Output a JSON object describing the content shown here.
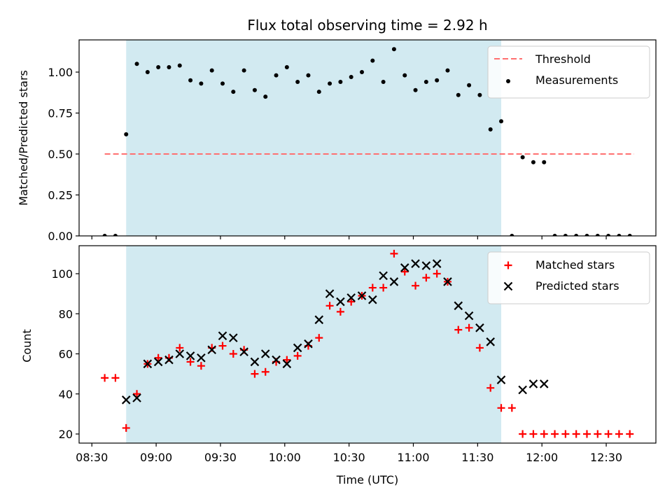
{
  "title": "Flux total observing time = 2.92 h",
  "colors": {
    "shade": "#add8e6",
    "threshold": "#ff7070",
    "measurement": "#000000",
    "matched": "#ff0000",
    "predicted": "#000000"
  },
  "chart_data": [
    {
      "type": "scatter",
      "panel": "top",
      "ylabel": "Matched/Predicted stars",
      "xlabel": "",
      "ylim": [
        0,
        1.2
      ],
      "yticks": [
        0,
        0.25,
        0.5,
        0.75,
        1.0
      ],
      "ytick_labels": [
        "0.00",
        "0.25",
        "0.50",
        "0.75",
        "1.00"
      ],
      "grid": false,
      "legend_position": "top-right",
      "shaded_interval_minutes": [
        46,
        221
      ],
      "series": [
        {
          "name": "Threshold",
          "style": "dashed-line",
          "x": [
            36,
            283
          ],
          "y": [
            0.5,
            0.5
          ]
        },
        {
          "name": "Measurements",
          "style": "dot",
          "x": [
            36,
            41,
            46,
            51,
            56,
            61,
            66,
            71,
            76,
            81,
            86,
            91,
            96,
            101,
            106,
            111,
            116,
            121,
            126,
            131,
            136,
            141,
            146,
            151,
            156,
            161,
            166,
            171,
            176,
            181,
            186,
            191,
            196,
            201,
            206,
            211,
            216,
            221,
            226,
            231,
            236,
            241,
            246,
            251,
            256,
            261,
            266,
            271,
            276,
            281
          ],
          "y": [
            0,
            0,
            0.62,
            1.05,
            1.0,
            1.03,
            1.03,
            1.04,
            0.95,
            0.93,
            1.01,
            0.93,
            0.88,
            1.01,
            0.89,
            0.85,
            0.98,
            1.03,
            0.94,
            0.98,
            0.88,
            0.93,
            0.94,
            0.97,
            1.0,
            1.07,
            0.94,
            1.14,
            0.98,
            0.89,
            0.94,
            0.95,
            1.01,
            0.86,
            0.92,
            0.86,
            0.65,
            0.7,
            0,
            0.48,
            0.45,
            0.45,
            0,
            0,
            0,
            0,
            0,
            0,
            0,
            0
          ]
        }
      ]
    },
    {
      "type": "scatter",
      "panel": "bottom",
      "ylabel": "Count",
      "xlabel": "Time (UTC)",
      "xticks_minutes": [
        30,
        60,
        90,
        120,
        150,
        180,
        210,
        240,
        270
      ],
      "xtick_labels": [
        "08:30",
        "09:00",
        "09:30",
        "10:00",
        "10:30",
        "11:00",
        "11:30",
        "12:00",
        "12:30"
      ],
      "yticks": [
        20,
        40,
        60,
        80,
        100
      ],
      "ytick_labels": [
        "20",
        "40",
        "60",
        "80",
        "100"
      ],
      "ylim": [
        15.5,
        113.5
      ],
      "grid": false,
      "legend_position": "top-right",
      "series": [
        {
          "name": "Matched stars",
          "style": "plus",
          "x": [
            36,
            41,
            46,
            51,
            56,
            61,
            66,
            71,
            76,
            81,
            86,
            91,
            96,
            101,
            106,
            111,
            116,
            121,
            126,
            131,
            136,
            141,
            146,
            151,
            156,
            161,
            166,
            171,
            176,
            181,
            186,
            191,
            196,
            201,
            206,
            211,
            216,
            221,
            226,
            231,
            236,
            241,
            246,
            251,
            256,
            261,
            266,
            271,
            276,
            281
          ],
          "y": [
            48,
            48,
            23,
            40,
            55,
            58,
            58,
            63,
            56,
            54,
            63,
            64,
            60,
            62,
            50,
            51,
            56,
            57,
            59,
            64,
            68,
            84,
            81,
            86,
            89,
            93,
            93,
            110,
            101,
            94,
            98,
            100,
            96,
            72,
            73,
            63,
            43,
            33,
            33,
            20,
            20,
            20,
            20,
            20,
            20,
            20,
            20,
            20,
            20,
            20
          ]
        },
        {
          "name": "Predicted stars",
          "style": "x",
          "x": [
            46,
            51,
            56,
            61,
            66,
            71,
            76,
            81,
            86,
            91,
            96,
            101,
            106,
            111,
            116,
            121,
            126,
            131,
            136,
            141,
            146,
            151,
            156,
            161,
            166,
            171,
            176,
            181,
            186,
            191,
            196,
            201,
            206,
            211,
            216,
            221,
            231,
            236,
            241
          ],
          "y": [
            37,
            38,
            55,
            56,
            57,
            60,
            59,
            58,
            62,
            69,
            68,
            61,
            56,
            60,
            57,
            55,
            63,
            65,
            77,
            90,
            86,
            88,
            89,
            87,
            99,
            96,
            103,
            105,
            104,
            105,
            96,
            84,
            79,
            73,
            66,
            47,
            42,
            45,
            45
          ]
        }
      ]
    }
  ]
}
